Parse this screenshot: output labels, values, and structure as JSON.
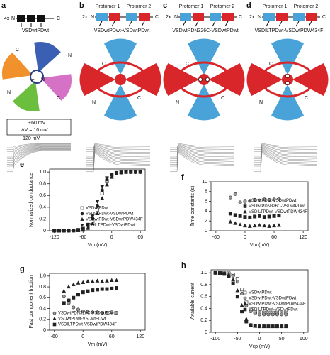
{
  "panels": {
    "a": {
      "label": "a",
      "copies": "4x",
      "n": "N",
      "c": "C",
      "construct": "VSDwtPDwt",
      "protocol": [
        "+60 mV",
        "ΔV = 10 mV",
        "−120 mV"
      ]
    },
    "b": {
      "label": "b",
      "copies": "2x",
      "n": "N",
      "c": "C",
      "protomers": [
        "Protomer 1",
        "Protomer 2"
      ],
      "construct": "VSDwtPDwt-VSDwtPDwt"
    },
    "c": {
      "label": "c",
      "copies": "2x",
      "n": "N",
      "c": "C",
      "protomers": [
        "Protomer 1",
        "Protomer 2"
      ],
      "construct": "VSDwtPDN326C-VSDwtPDwt"
    },
    "d": {
      "label": "d",
      "copies": "2x",
      "n": "N",
      "c": "C",
      "protomers": [
        "Protomer 1",
        "Protomer 2"
      ],
      "construct": "VSDILTPDwt-VSDwtPDW434F"
    }
  },
  "chart_data": [
    {
      "type": "scatter",
      "panel_label": "e",
      "xlabel": "Vm (mV)",
      "ylabel": "Normalized conductance",
      "x": [
        -120,
        -110,
        -100,
        -90,
        -80,
        -70,
        -60,
        -50,
        -40,
        -30,
        -20,
        -10,
        0,
        10,
        20,
        30,
        40,
        50,
        60
      ],
      "xlim": [
        -130,
        70
      ],
      "xticks": [
        -120,
        -60,
        0,
        60
      ],
      "ylim": [
        0,
        1.05
      ],
      "yticks": [
        0,
        0.2,
        0.4,
        0.6,
        0.8,
        {
          "value": 1,
          "label": "1.0"
        }
      ],
      "legend": "lower right",
      "series": [
        {
          "name": "VSDwtPDwt",
          "color": "#ffffff",
          "marker": "square",
          "values": [
            0,
            0,
            0,
            0.001,
            0.002,
            0.007,
            0.02,
            0.06,
            0.16,
            0.36,
            0.64,
            0.84,
            0.94,
            0.98,
            0.99,
            1,
            1,
            1,
            1
          ]
        },
        {
          "name": "VSDwtPDwt-VSDwtPDwt",
          "color": "#222222",
          "marker": "circle",
          "values": [
            0,
            0,
            0,
            0.002,
            0.005,
            0.01,
            0.03,
            0.09,
            0.21,
            0.42,
            0.69,
            0.87,
            0.95,
            0.98,
            0.99,
            1,
            1,
            1,
            1
          ]
        },
        {
          "name": "VSDwtPDwt-VSDwtPDW434F",
          "color": "#222222",
          "marker": "triangle",
          "values": [
            0,
            0,
            0,
            0,
            0.001,
            0.005,
            0.01,
            0.04,
            0.12,
            0.29,
            0.55,
            0.78,
            0.91,
            0.97,
            0.99,
            1,
            1,
            1,
            1
          ]
        },
        {
          "name": "VSDILTPDwt-VSDwtPDwt",
          "color": "#222222",
          "marker": "triangle-down",
          "values": [
            0,
            0,
            0,
            0.003,
            0.007,
            0.02,
            0.04,
            0.11,
            0.25,
            0.5,
            0.75,
            0.9,
            0.96,
            0.99,
            1,
            1,
            1,
            1,
            1
          ]
        }
      ]
    },
    {
      "type": "scatter",
      "panel_label": "f",
      "xlabel": "Vm (mV)",
      "ylabel": "Time constants (s)",
      "x": [
        -30,
        -20,
        -10,
        0,
        10,
        20,
        30,
        40,
        50,
        60,
        70
      ],
      "xlim": [
        -70,
        130
      ],
      "xticks": [
        -60,
        0,
        60,
        120
      ],
      "ylim": [
        0,
        10
      ],
      "yticks": [
        0,
        2,
        4,
        6,
        8,
        10
      ],
      "legend": "center right",
      "series": [
        {
          "name": "VSDwtPDwt-VSDwtPDwt",
          "color": "#999999",
          "marker": "circle",
          "values": [
            6.8,
            7.5,
            5.8,
            5.9,
            6.1,
            6.3,
            6.2,
            6.4,
            6.3,
            6.4,
            6.5
          ]
        },
        {
          "name": "VSDwtPDN326C-VSDwtPDwt",
          "color": "#222222",
          "marker": "square",
          "values": [
            3.5,
            3.2,
            3.0,
            2.8,
            2.7,
            2.9,
            3.0,
            2.8,
            2.9,
            3.0,
            3.1
          ]
        },
        {
          "name": "VSDILTPDwt-VSDwtPDW434F",
          "color": "#222222",
          "marker": "triangle",
          "values": [
            1.8,
            1.5,
            1.2,
            1.0,
            0.9,
            1.0,
            1.1,
            1.0,
            0.9,
            1.0,
            1.1
          ]
        }
      ]
    },
    {
      "type": "scatter",
      "panel_label": "g",
      "xlabel": "Vm (mV)",
      "ylabel": "Fast component fraction",
      "x": [
        -40,
        -30,
        -20,
        -10,
        0,
        10,
        20,
        30,
        40,
        50,
        60,
        70
      ],
      "xlim": [
        -70,
        130
      ],
      "xticks": [
        -60,
        0,
        60,
        120
      ],
      "ylim": [
        0,
        1.05
      ],
      "yticks": [
        0,
        0.2,
        0.4,
        0.6,
        0.8,
        {
          "value": 1,
          "label": "1.0"
        }
      ],
      "legend": "lower left",
      "series": [
        {
          "name": "VSDwtPDN326C-VSDwtPDwt",
          "color": "#999999",
          "marker": "circle",
          "values": [
            0.62,
            0.5,
            0.42,
            0.38,
            0.35,
            0.34,
            0.33,
            0.33,
            0.32,
            0.32,
            0.33,
            0.32
          ]
        },
        {
          "name": "VSDwtPDwt-VSDwtPDwt",
          "color": "#222222",
          "marker": "triangle",
          "values": [
            0.72,
            0.8,
            0.84,
            0.87,
            0.88,
            0.9,
            0.9,
            0.91,
            0.9,
            0.91,
            0.92,
            0.92
          ]
        },
        {
          "name": "VSDILTPDwt-VSDwtPDW434F",
          "color": "#222222",
          "marker": "square",
          "values": [
            0.5,
            0.55,
            0.6,
            0.66,
            0.7,
            0.72,
            0.74,
            0.75,
            0.76,
            0.76,
            0.77,
            0.78
          ]
        }
      ]
    },
    {
      "type": "scatter",
      "panel_label": "h",
      "xlabel": "Vcp (mV)",
      "ylabel": "Available current",
      "x": [
        -100,
        -90,
        -80,
        -70,
        -60,
        -50,
        -40,
        -30,
        -20,
        -10,
        0,
        10,
        20,
        30,
        40,
        50,
        60
      ],
      "xlim": [
        -110,
        110
      ],
      "xticks": [
        -100,
        -50,
        0,
        50,
        100
      ],
      "ylim": [
        0,
        1.05
      ],
      "yticks": [
        0,
        0.2,
        0.4,
        0.6,
        0.8,
        {
          "value": 1,
          "label": "1.0"
        }
      ],
      "legend": "center right",
      "series": [
        {
          "name": "VSDwtPDwt",
          "color": "#ffffff",
          "marker": "square",
          "values": [
            1,
            1,
            1,
            0.99,
            0.97,
            0.9,
            0.72,
            0.5,
            0.38,
            0.34,
            0.33,
            0.33,
            0.33,
            0.33,
            0.33,
            0.33,
            0.33
          ]
        },
        {
          "name": "VSDwtPDwt-VSDwtPDwt",
          "color": "#999999",
          "marker": "circle",
          "values": [
            1,
            1,
            0.99,
            0.98,
            0.95,
            0.85,
            0.65,
            0.45,
            0.35,
            0.32,
            0.3,
            0.3,
            0.3,
            0.3,
            0.3,
            0.3,
            0.3
          ]
        },
        {
          "name": "VSDwtPDwt-VSDwtPDW434F",
          "color": "#222222",
          "marker": "triangle",
          "values": [
            1,
            1,
            0.99,
            0.96,
            0.88,
            0.7,
            0.45,
            0.22,
            0.12,
            0.1,
            0.1,
            0.1,
            0.1,
            0.1,
            0.1,
            0.1,
            0.1
          ]
        },
        {
          "name": "VSDILTPDwt-VSDwtPDwt",
          "color": "#222222",
          "marker": "square",
          "values": [
            1,
            0.99,
            0.98,
            0.94,
            0.82,
            0.6,
            0.35,
            0.18,
            0.12,
            0.11,
            0.1,
            0.1,
            0.1,
            0.1,
            0.1,
            0.1,
            0.1
          ]
        }
      ]
    }
  ]
}
